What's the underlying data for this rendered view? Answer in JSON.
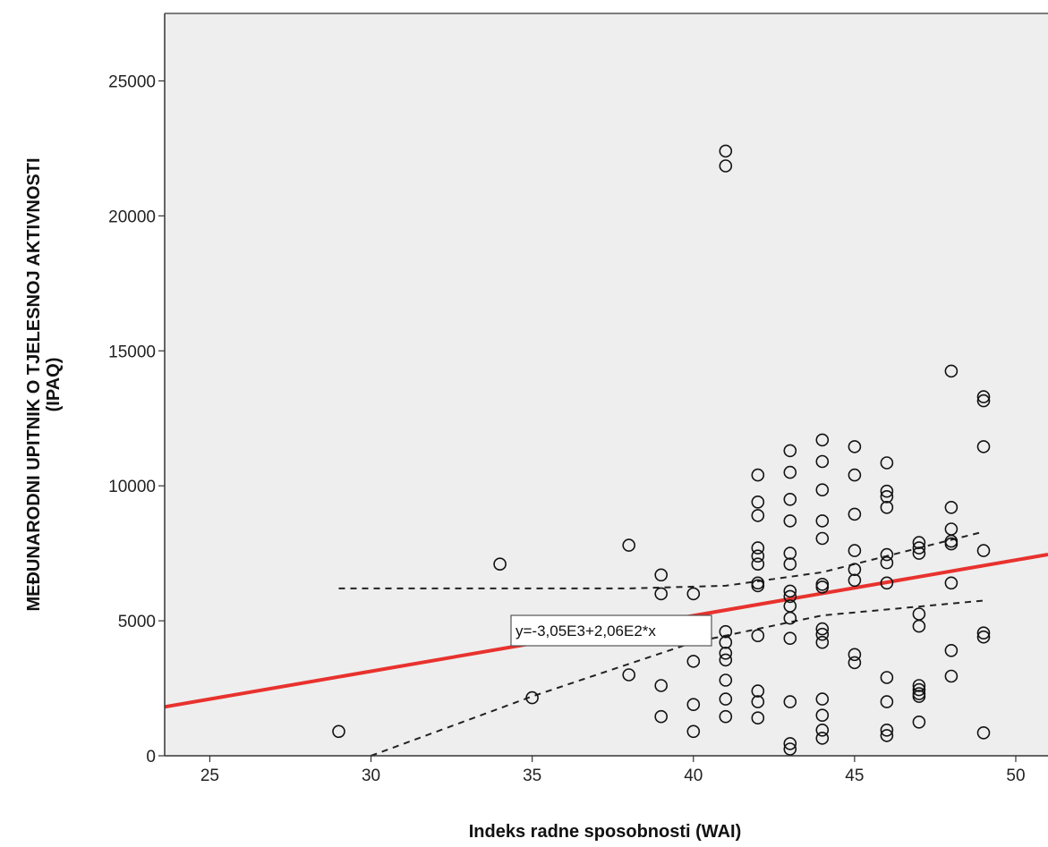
{
  "chart_data": {
    "type": "scatter",
    "title": "",
    "xlabel": "Indeks radne sposobnosti (WAI)",
    "ylabel_lines": [
      "MEĐUNARODNI UPITNIK O TJELESNOJ AKTIVNOSTI",
      "(IPAQ)"
    ],
    "xlim": [
      23.6,
      51.0
    ],
    "ylim": [
      0,
      27500
    ],
    "x_ticks": [
      25,
      30,
      35,
      40,
      45,
      50
    ],
    "y_ticks": [
      0,
      5000,
      10000,
      15000,
      20000,
      25000
    ],
    "x_tick_labels": [
      "25",
      "30",
      "35",
      "40",
      "45",
      "50"
    ],
    "y_tick_labels": [
      "0",
      "5000",
      "10000",
      "15000",
      "20000",
      "25000"
    ],
    "grid": false,
    "colors": {
      "plot_background": "#eeeeee",
      "regression_line": "#e8322e",
      "points": "#111111",
      "confidence_band": "#222222"
    },
    "equation_label": "y=-3,05E3+2,06E2*x",
    "regression": {
      "intercept": -3050,
      "slope": 206
    },
    "confidence_band": {
      "upper": [
        [
          29,
          6200
        ],
        [
          38,
          6200
        ],
        [
          41,
          6300
        ],
        [
          44,
          6800
        ],
        [
          49,
          8300
        ]
      ],
      "lower": [
        [
          30,
          0
        ],
        [
          35,
          2200
        ],
        [
          40,
          4200
        ],
        [
          44,
          5200
        ],
        [
          49,
          5750
        ]
      ]
    },
    "points": [
      [
        29,
        900
      ],
      [
        34,
        7100
      ],
      [
        35,
        2150
      ],
      [
        38,
        7800
      ],
      [
        38,
        3000
      ],
      [
        39,
        6700
      ],
      [
        39,
        6000
      ],
      [
        39,
        2600
      ],
      [
        39,
        1450
      ],
      [
        40,
        6000
      ],
      [
        40,
        3500
      ],
      [
        40,
        1900
      ],
      [
        40,
        900
      ],
      [
        41,
        22400
      ],
      [
        41,
        21850
      ],
      [
        41,
        4600
      ],
      [
        41,
        4200
      ],
      [
        41,
        3800
      ],
      [
        41,
        3550
      ],
      [
        41,
        2800
      ],
      [
        41,
        2100
      ],
      [
        41,
        1450
      ],
      [
        42,
        10400
      ],
      [
        42,
        9400
      ],
      [
        42,
        8900
      ],
      [
        42,
        7700
      ],
      [
        42,
        7400
      ],
      [
        42,
        7100
      ],
      [
        42,
        6400
      ],
      [
        42,
        6300
      ],
      [
        42,
        4450
      ],
      [
        42,
        2400
      ],
      [
        42,
        2000
      ],
      [
        42,
        1400
      ],
      [
        43,
        11300
      ],
      [
        43,
        10500
      ],
      [
        43,
        9500
      ],
      [
        43,
        8700
      ],
      [
        43,
        7500
      ],
      [
        43,
        7100
      ],
      [
        43,
        6100
      ],
      [
        43,
        5900
      ],
      [
        43,
        5550
      ],
      [
        43,
        5100
      ],
      [
        43,
        4350
      ],
      [
        43,
        2000
      ],
      [
        43,
        450
      ],
      [
        43,
        250
      ],
      [
        44,
        11700
      ],
      [
        44,
        10900
      ],
      [
        44,
        9850
      ],
      [
        44,
        8700
      ],
      [
        44,
        8050
      ],
      [
        44,
        6350
      ],
      [
        44,
        6250
      ],
      [
        44,
        4700
      ],
      [
        44,
        4500
      ],
      [
        44,
        4200
      ],
      [
        44,
        2100
      ],
      [
        44,
        1500
      ],
      [
        44,
        950
      ],
      [
        44,
        650
      ],
      [
        45,
        11450
      ],
      [
        45,
        10400
      ],
      [
        45,
        8950
      ],
      [
        45,
        7600
      ],
      [
        45,
        6900
      ],
      [
        45,
        6500
      ],
      [
        45,
        3750
      ],
      [
        45,
        3450
      ],
      [
        46,
        10850
      ],
      [
        46,
        9800
      ],
      [
        46,
        9600
      ],
      [
        46,
        9200
      ],
      [
        46,
        7450
      ],
      [
        46,
        7150
      ],
      [
        46,
        6400
      ],
      [
        46,
        2900
      ],
      [
        46,
        2000
      ],
      [
        46,
        950
      ],
      [
        46,
        750
      ],
      [
        47,
        7900
      ],
      [
        47,
        7700
      ],
      [
        47,
        7500
      ],
      [
        47,
        5250
      ],
      [
        47,
        4800
      ],
      [
        47,
        2600
      ],
      [
        47,
        2450
      ],
      [
        47,
        2300
      ],
      [
        47,
        2200
      ],
      [
        47,
        1250
      ],
      [
        48,
        14250
      ],
      [
        48,
        9200
      ],
      [
        48,
        8400
      ],
      [
        48,
        7950
      ],
      [
        48,
        7850
      ],
      [
        48,
        6400
      ],
      [
        48,
        3900
      ],
      [
        48,
        2950
      ],
      [
        49,
        13300
      ],
      [
        49,
        13150
      ],
      [
        49,
        11450
      ],
      [
        49,
        7600
      ],
      [
        49,
        4550
      ],
      [
        49,
        4400
      ],
      [
        49,
        850
      ]
    ]
  }
}
